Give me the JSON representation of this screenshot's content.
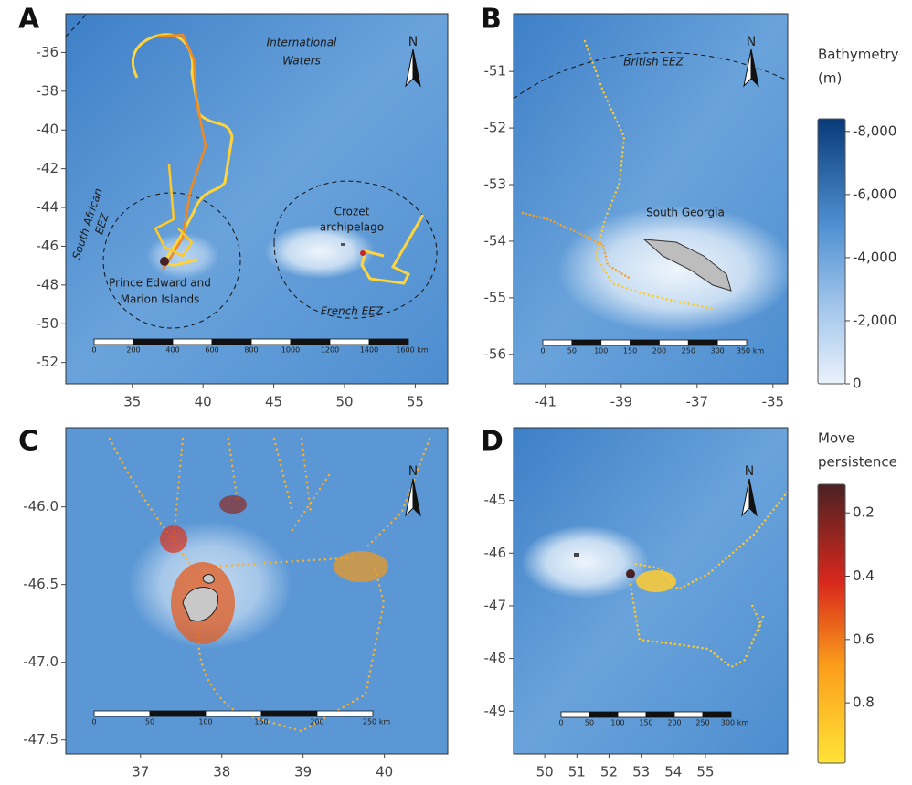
{
  "panels": [
    {
      "label": "A",
      "north": "N",
      "xlim": [
        30.3,
        57.3
      ],
      "ylim": [
        -53.1,
        -34.0
      ],
      "xticks": [
        35,
        40,
        45,
        50,
        55
      ],
      "yticks": [
        -36,
        -38,
        -40,
        -42,
        -44,
        -46,
        -48,
        -50,
        -52
      ],
      "scale_bar": [
        "0",
        "200",
        "400",
        "600",
        "800",
        "1000",
        "1200",
        "1400",
        "1600 km"
      ],
      "annotations": [
        "International",
        "Waters",
        "South African",
        "EEZ",
        "Crozet",
        "archipelago",
        "Prince Edward and",
        "Marion Islands",
        "French EEZ"
      ]
    },
    {
      "label": "B",
      "north": "N",
      "xlim": [
        -41.84,
        -34.61
      ],
      "ylim": [
        -56.52,
        -49.98
      ],
      "xticks": [
        -41,
        -39,
        -37,
        -35
      ],
      "yticks": [
        -51,
        -52,
        -53,
        -54,
        -55,
        -56
      ],
      "scale_bar": [
        "0",
        "50",
        "100",
        "150",
        "200",
        "250",
        "300",
        "350 km"
      ],
      "annotations": [
        "British EEZ",
        "South Georgia"
      ]
    },
    {
      "label": "C",
      "north": "N",
      "xlim": [
        36.08,
        40.78
      ],
      "ylim": [
        -47.59,
        -45.49
      ],
      "xticks": [
        37,
        38,
        39,
        40
      ],
      "yticks": [
        {
          "value": -46,
          "label": "-46.0"
        },
        -46.5,
        {
          "value": -47,
          "label": "-47.0"
        },
        -47.5
      ],
      "scale_bar": [
        "0",
        "50",
        "100",
        "150",
        "200",
        "250 km"
      ],
      "annotations": []
    },
    {
      "label": "D",
      "north": "N",
      "xlim": [
        49.03,
        57.56
      ],
      "ylim": [
        -49.81,
        -43.62
      ],
      "xticks": [
        50,
        51,
        52,
        53,
        54,
        55
      ],
      "yticks": [
        -45,
        -46,
        -47,
        -48,
        -49
      ],
      "scale_bar": [
        "0",
        "50",
        "100",
        "150",
        "200",
        "250",
        "300 km"
      ],
      "annotations": []
    }
  ],
  "legends": [
    {
      "title": [
        "Bathymetry",
        "(m)"
      ],
      "lim": [
        0,
        -8400
      ],
      "ticks": [
        {
          "value": -8000,
          "label": "-8,000"
        },
        {
          "value": -6000,
          "label": "-6,000"
        },
        {
          "value": -4000,
          "label": "-4,000"
        },
        {
          "value": -2000,
          "label": "-2,000"
        },
        0
      ]
    },
    {
      "title": [
        "Move",
        "persistence"
      ],
      "lim": [
        0.99,
        0.11
      ],
      "ticks": [
        0.2,
        0.4,
        0.6,
        0.8
      ]
    }
  ]
}
